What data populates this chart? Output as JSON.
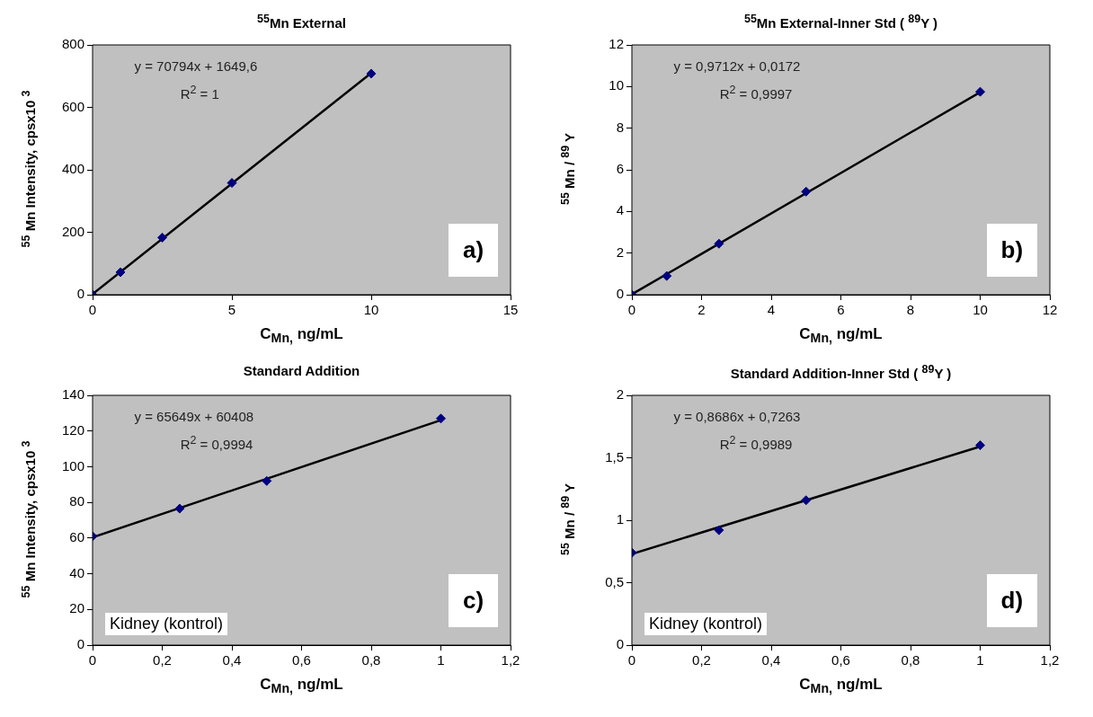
{
  "chart_data": [
    {
      "type": "scatter",
      "title": "$^{55}$Mn External",
      "xlabel": "C$_{Mn,}$ ng/mL",
      "ylabel": "$^{55}$ Mn Intensity, cpsx10 $^{3}$",
      "annotations": [
        "y = 70794x + 1649,6",
        "R$^{2}$ = 1",
        "a)"
      ],
      "xlim": [
        0,
        15
      ],
      "xticks": [
        0,
        5,
        10,
        15
      ],
      "ylim": [
        0,
        800
      ],
      "yticks": [
        0,
        200,
        400,
        600,
        800
      ],
      "grid": false,
      "marker": "diamond",
      "series": [
        {
          "type": "scatter",
          "color": "#000080",
          "x": [
            0,
            1,
            2.5,
            5,
            10
          ],
          "values": [
            0,
            72,
            183,
            358,
            708
          ]
        },
        {
          "type": "line",
          "color": "#000000",
          "marker": "none",
          "x": [
            0,
            10
          ],
          "values": [
            2,
            710
          ]
        }
      ]
    },
    {
      "type": "scatter",
      "title": "$^{55}$Mn External-Inner Std ( $^{89}$Y )",
      "xlabel": "C$_{Mn,}$ ng/mL",
      "ylabel": "$^{55}$ Mn / $^{89}$ Y",
      "annotations": [
        "y = 0,9712x + 0,0172",
        "R$^{2}$ = 0,9997",
        "b)"
      ],
      "xlim": [
        0,
        12
      ],
      "xticks": [
        0,
        2,
        4,
        6,
        8,
        10,
        12
      ],
      "ylim": [
        0,
        12
      ],
      "yticks": [
        0,
        2,
        4,
        6,
        8,
        10,
        12
      ],
      "grid": false,
      "marker": "diamond",
      "series": [
        {
          "type": "scatter",
          "color": "#000080",
          "x": [
            0,
            1,
            2.5,
            5,
            10
          ],
          "values": [
            0,
            0.9,
            2.45,
            4.95,
            9.75
          ]
        },
        {
          "type": "line",
          "color": "#000000",
          "marker": "none",
          "x": [
            0,
            10
          ],
          "values": [
            0.02,
            9.73
          ]
        }
      ]
    },
    {
      "type": "scatter",
      "title": "Standard Addition",
      "xlabel": "C$_{Mn,}$ ng/mL",
      "ylabel": "$^{55}$ Mn Intensity, cpsx10 $^{3}$",
      "annotations": [
        "y = 65649x + 60408",
        "R$^{2}$ = 0,9994",
        "c)",
        "Kidney (kontrol)"
      ],
      "xlim": [
        0,
        1.2
      ],
      "xticks": [
        0,
        {
          "value": 0.2,
          "label": "0,2"
        },
        {
          "value": 0.4,
          "label": "0,4"
        },
        {
          "value": 0.6,
          "label": "0,6"
        },
        {
          "value": 0.8,
          "label": "0,8"
        },
        1,
        {
          "value": 1.2,
          "label": "1,2"
        }
      ],
      "ylim": [
        0,
        140
      ],
      "yticks": [
        0,
        20,
        40,
        60,
        80,
        100,
        120,
        140
      ],
      "grid": false,
      "marker": "diamond",
      "series": [
        {
          "type": "scatter",
          "color": "#000080",
          "x": [
            0,
            0.25,
            0.5,
            1
          ],
          "values": [
            61,
            76.5,
            92,
            127
          ]
        },
        {
          "type": "line",
          "color": "#000000",
          "marker": "none",
          "x": [
            0,
            1
          ],
          "values": [
            60.4,
            126.1
          ]
        }
      ]
    },
    {
      "type": "scatter",
      "title": "Standard Addition-Inner Std ( $^{89}$Y )",
      "xlabel": "C$_{Mn,}$ ng/mL",
      "ylabel": "$^{55}$ Mn / $^{89}$ Y",
      "annotations": [
        "y = 0,8686x + 0,7263",
        "R$^{2}$ = 0,9989",
        "d)",
        "Kidney (kontrol)"
      ],
      "xlim": [
        0,
        1.2
      ],
      "xticks": [
        0,
        {
          "value": 0.2,
          "label": "0,2"
        },
        {
          "value": 0.4,
          "label": "0,4"
        },
        {
          "value": 0.6,
          "label": "0,6"
        },
        {
          "value": 0.8,
          "label": "0,8"
        },
        1,
        {
          "value": 1.2,
          "label": "1,2"
        }
      ],
      "ylim": [
        0,
        2
      ],
      "yticks": [
        0,
        {
          "value": 0.5,
          "label": "0,5"
        },
        1,
        {
          "value": 1.5,
          "label": "1,5"
        },
        2
      ],
      "grid": false,
      "marker": "diamond",
      "series": [
        {
          "type": "scatter",
          "color": "#000080",
          "x": [
            0,
            0.25,
            0.5,
            1
          ],
          "values": [
            0.74,
            0.92,
            1.16,
            1.6
          ]
        },
        {
          "type": "line",
          "color": "#000000",
          "marker": "none",
          "x": [
            0,
            1
          ],
          "values": [
            0.73,
            1.59
          ]
        }
      ]
    }
  ]
}
